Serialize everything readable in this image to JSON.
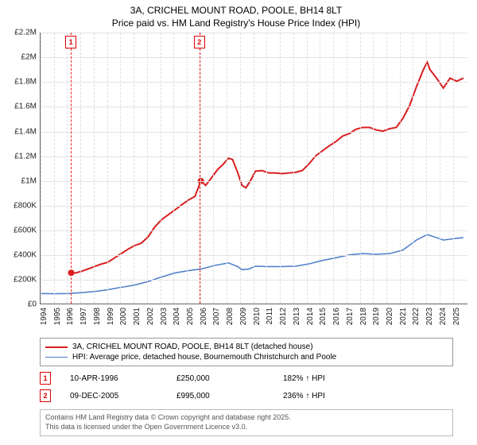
{
  "title_line1": "3A, CRICHEL MOUNT ROAD, POOLE, BH14 8LT",
  "title_line2": "Price paid vs. HM Land Registry's House Price Index (HPI)",
  "chart": {
    "type": "line",
    "x_start": 1994,
    "x_end": 2025.8,
    "y_min": 0,
    "y_max": 2200000,
    "y_tick_step": 200000,
    "y_tick_labels": [
      "£0",
      "£200K",
      "£400K",
      "£600K",
      "£800K",
      "£1M",
      "£1.2M",
      "£1.4M",
      "£1.6M",
      "£1.8M",
      "£2M",
      "£2.2M"
    ],
    "x_ticks": [
      1994,
      1995,
      1996,
      1997,
      1998,
      1999,
      2000,
      2001,
      2002,
      2003,
      2004,
      2005,
      2006,
      2007,
      2008,
      2009,
      2010,
      2011,
      2012,
      2013,
      2014,
      2015,
      2016,
      2017,
      2018,
      2019,
      2020,
      2021,
      2022,
      2023,
      2024,
      2025
    ],
    "grid_color": "#e4e4e4",
    "background": "#ffffff",
    "axis_color": "#666666",
    "series": [
      {
        "name": "3A, CRICHEL MOUNT ROAD, POOLE, BH14 8LT (detached house)",
        "color": "#d81e1e",
        "width": 2,
        "points": [
          [
            1996.28,
            250000
          ],
          [
            1996.6,
            248000
          ],
          [
            1997.0,
            260000
          ],
          [
            1997.5,
            280000
          ],
          [
            1998.0,
            300000
          ],
          [
            1998.5,
            320000
          ],
          [
            1999.0,
            335000
          ],
          [
            1999.5,
            370000
          ],
          [
            2000.0,
            405000
          ],
          [
            2000.5,
            440000
          ],
          [
            2001.0,
            470000
          ],
          [
            2001.5,
            490000
          ],
          [
            2002.0,
            540000
          ],
          [
            2002.5,
            620000
          ],
          [
            2003.0,
            680000
          ],
          [
            2003.5,
            720000
          ],
          [
            2004.0,
            760000
          ],
          [
            2004.5,
            800000
          ],
          [
            2005.0,
            840000
          ],
          [
            2005.5,
            870000
          ],
          [
            2005.94,
            995000
          ],
          [
            2006.3,
            960000
          ],
          [
            2006.8,
            1030000
          ],
          [
            2007.2,
            1090000
          ],
          [
            2007.6,
            1130000
          ],
          [
            2008.0,
            1180000
          ],
          [
            2008.3,
            1170000
          ],
          [
            2008.7,
            1060000
          ],
          [
            2009.0,
            960000
          ],
          [
            2009.3,
            940000
          ],
          [
            2009.7,
            1010000
          ],
          [
            2010.0,
            1075000
          ],
          [
            2010.5,
            1080000
          ],
          [
            2011.0,
            1060000
          ],
          [
            2011.5,
            1060000
          ],
          [
            2012.0,
            1055000
          ],
          [
            2012.5,
            1060000
          ],
          [
            2013.0,
            1065000
          ],
          [
            2013.5,
            1080000
          ],
          [
            2014.0,
            1135000
          ],
          [
            2014.5,
            1200000
          ],
          [
            2015.0,
            1240000
          ],
          [
            2015.5,
            1280000
          ],
          [
            2016.0,
            1315000
          ],
          [
            2016.5,
            1360000
          ],
          [
            2017.0,
            1380000
          ],
          [
            2017.5,
            1415000
          ],
          [
            2018.0,
            1430000
          ],
          [
            2018.5,
            1430000
          ],
          [
            2019.0,
            1410000
          ],
          [
            2019.5,
            1400000
          ],
          [
            2020.0,
            1420000
          ],
          [
            2020.5,
            1430000
          ],
          [
            2021.0,
            1505000
          ],
          [
            2021.5,
            1610000
          ],
          [
            2022.0,
            1760000
          ],
          [
            2022.5,
            1895000
          ],
          [
            2022.8,
            1960000
          ],
          [
            2023.0,
            1900000
          ],
          [
            2023.5,
            1830000
          ],
          [
            2024.0,
            1750000
          ],
          [
            2024.5,
            1830000
          ],
          [
            2025.0,
            1805000
          ],
          [
            2025.5,
            1830000
          ]
        ]
      },
      {
        "name": "HPI: Average price, detached house, Bournemouth Christchurch and Poole",
        "color": "#4a7bc8",
        "width": 1.5,
        "points": [
          [
            1994.0,
            82000
          ],
          [
            1995.0,
            80000
          ],
          [
            1996.0,
            82000
          ],
          [
            1997.0,
            88000
          ],
          [
            1998.0,
            98000
          ],
          [
            1999.0,
            112000
          ],
          [
            2000.0,
            132000
          ],
          [
            2001.0,
            150000
          ],
          [
            2002.0,
            178000
          ],
          [
            2003.0,
            215000
          ],
          [
            2004.0,
            248000
          ],
          [
            2005.0,
            267000
          ],
          [
            2006.0,
            282000
          ],
          [
            2007.0,
            310000
          ],
          [
            2008.0,
            330000
          ],
          [
            2008.7,
            300000
          ],
          [
            2009.0,
            275000
          ],
          [
            2009.5,
            280000
          ],
          [
            2010.0,
            303000
          ],
          [
            2011.0,
            300000
          ],
          [
            2012.0,
            300000
          ],
          [
            2013.0,
            303000
          ],
          [
            2014.0,
            322000
          ],
          [
            2015.0,
            350000
          ],
          [
            2016.0,
            372000
          ],
          [
            2017.0,
            395000
          ],
          [
            2018.0,
            405000
          ],
          [
            2019.0,
            400000
          ],
          [
            2020.0,
            405000
          ],
          [
            2021.0,
            435000
          ],
          [
            2022.0,
            515000
          ],
          [
            2022.8,
            560000
          ],
          [
            2023.5,
            535000
          ],
          [
            2024.0,
            515000
          ],
          [
            2025.0,
            530000
          ],
          [
            2025.5,
            535000
          ]
        ]
      }
    ],
    "markers": [
      {
        "x": 1996.28,
        "y": 250000,
        "color": "#d81e1e",
        "size": 4
      },
      {
        "x": 2005.94,
        "y": 995000,
        "color": "#d81e1e",
        "size": 4
      }
    ],
    "event_lines": [
      {
        "x": 1996.28,
        "label": "1",
        "color": "#ee2222"
      },
      {
        "x": 2005.94,
        "label": "2",
        "color": "#ee2222"
      }
    ]
  },
  "legend": {
    "items": [
      {
        "color": "#d81e1e",
        "width": 2,
        "label": "3A, CRICHEL MOUNT ROAD, POOLE, BH14 8LT (detached house)"
      },
      {
        "color": "#4a7bc8",
        "width": 1.5,
        "label": "HPI: Average price, detached house, Bournemouth Christchurch and Poole"
      }
    ]
  },
  "events": [
    {
      "num": "1",
      "date": "10-APR-1996",
      "price": "£250,000",
      "hpi": "182% ↑ HPI"
    },
    {
      "num": "2",
      "date": "09-DEC-2005",
      "price": "£995,000",
      "hpi": "236% ↑ HPI"
    }
  ],
  "footer_line1": "Contains HM Land Registry data © Crown copyright and database right 2025.",
  "footer_line2": "This data is licensed under the Open Government Licence v3.0."
}
